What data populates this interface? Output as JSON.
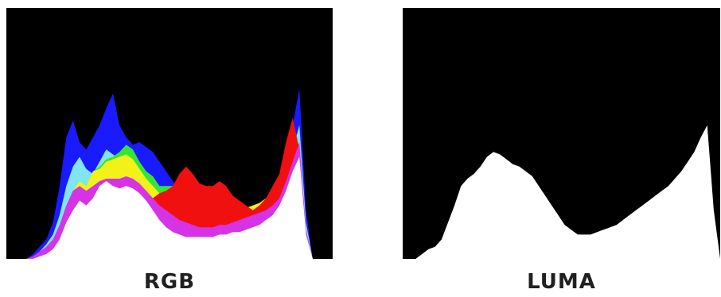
{
  "panels": [
    {
      "caption": "RGB",
      "mode": "rgb",
      "background": "#000000",
      "channel_colors": {
        "blue": "#1a1aff",
        "cyan": "#7fe6f0",
        "green": "#33e633",
        "yellow": "#f2f21a",
        "red": "#f01010",
        "magenta": "#d633e6",
        "white": "#ffffff"
      },
      "histograms": {
        "blue": [
          0,
          0,
          0,
          0,
          0.02,
          0.05,
          0.08,
          0.15,
          0.3,
          0.5,
          0.57,
          0.48,
          0.45,
          0.5,
          0.55,
          0.62,
          0.68,
          0.55,
          0.5,
          0.47,
          0.48,
          0.46,
          0.44,
          0.4,
          0.36,
          0.32,
          0.28,
          0.25,
          0.22,
          0.2,
          0.18,
          0.16,
          0.15,
          0.15,
          0.15,
          0.16,
          0.17,
          0.18,
          0.2,
          0.22,
          0.25,
          0.3,
          0.4,
          0.55,
          0.7,
          0.2,
          0,
          0,
          0,
          0
        ],
        "cyan": [
          0,
          0,
          0,
          0,
          0.01,
          0.03,
          0.06,
          0.1,
          0.18,
          0.3,
          0.38,
          0.42,
          0.37,
          0.35,
          0.4,
          0.45,
          0.43,
          0.41,
          0.42,
          0.4,
          0.38,
          0.36,
          0.32,
          0.28,
          0.24,
          0.2,
          0.17,
          0.14,
          0.12,
          0.1,
          0.09,
          0.08,
          0.08,
          0.08,
          0.09,
          0.1,
          0.11,
          0.12,
          0.14,
          0.16,
          0.2,
          0.26,
          0.35,
          0.45,
          0.55,
          0.15,
          0,
          0,
          0,
          0
        ],
        "green": [
          0,
          0,
          0,
          0,
          0,
          0.01,
          0.03,
          0.05,
          0.1,
          0.2,
          0.28,
          0.32,
          0.3,
          0.36,
          0.38,
          0.41,
          0.42,
          0.44,
          0.47,
          0.45,
          0.4,
          0.36,
          0.34,
          0.3,
          0.3,
          0.3,
          0.34,
          0.32,
          0.27,
          0.25,
          0.2,
          0.17,
          0.15,
          0.14,
          0.13,
          0.14,
          0.15,
          0.17,
          0.19,
          0.21,
          0.24,
          0.28,
          0.35,
          0.38,
          0.4,
          0.1,
          0,
          0,
          0,
          0
        ],
        "yellow": [
          0,
          0,
          0,
          0,
          0,
          0.01,
          0.03,
          0.05,
          0.1,
          0.2,
          0.28,
          0.32,
          0.3,
          0.36,
          0.37,
          0.4,
          0.41,
          0.42,
          0.43,
          0.41,
          0.37,
          0.33,
          0.3,
          0.27,
          0.25,
          0.24,
          0.23,
          0.22,
          0.21,
          0.2,
          0.2,
          0.19,
          0.19,
          0.19,
          0.19,
          0.2,
          0.21,
          0.22,
          0.23,
          0.25,
          0.28,
          0.32,
          0.36,
          0.4,
          0.42,
          0.1,
          0,
          0,
          0,
          0
        ],
        "red": [
          0,
          0,
          0,
          0,
          0,
          0.01,
          0.02,
          0.04,
          0.08,
          0.15,
          0.22,
          0.25,
          0.24,
          0.27,
          0.28,
          0.3,
          0.3,
          0.3,
          0.31,
          0.3,
          0.28,
          0.26,
          0.25,
          0.27,
          0.28,
          0.3,
          0.35,
          0.38,
          0.35,
          0.31,
          0.3,
          0.3,
          0.32,
          0.3,
          0.26,
          0.24,
          0.22,
          0.2,
          0.22,
          0.25,
          0.3,
          0.35,
          0.48,
          0.58,
          0.45,
          0.1,
          0,
          0,
          0,
          0
        ],
        "magenta": [
          0,
          0,
          0,
          0,
          0.01,
          0.03,
          0.05,
          0.08,
          0.14,
          0.22,
          0.28,
          0.3,
          0.28,
          0.3,
          0.32,
          0.33,
          0.33,
          0.33,
          0.34,
          0.33,
          0.31,
          0.28,
          0.25,
          0.22,
          0.2,
          0.18,
          0.16,
          0.15,
          0.14,
          0.13,
          0.13,
          0.13,
          0.14,
          0.14,
          0.15,
          0.16,
          0.17,
          0.18,
          0.19,
          0.2,
          0.22,
          0.25,
          0.32,
          0.4,
          0.48,
          0.12,
          0,
          0,
          0,
          0
        ],
        "white": [
          0,
          0,
          0,
          0,
          0,
          0.01,
          0.02,
          0.04,
          0.08,
          0.15,
          0.2,
          0.24,
          0.22,
          0.25,
          0.3,
          0.32,
          0.3,
          0.29,
          0.3,
          0.29,
          0.27,
          0.24,
          0.2,
          0.16,
          0.13,
          0.11,
          0.1,
          0.09,
          0.09,
          0.09,
          0.09,
          0.09,
          0.1,
          0.1,
          0.11,
          0.11,
          0.12,
          0.13,
          0.14,
          0.16,
          0.18,
          0.22,
          0.28,
          0.36,
          0.42,
          0.1,
          0,
          0,
          0,
          0
        ]
      }
    },
    {
      "caption": "LUMA",
      "mode": "luma",
      "background": "#000000",
      "fill_color": "#ffffff",
      "histogram": [
        0,
        0,
        0,
        0.02,
        0.04,
        0.05,
        0.08,
        0.15,
        0.22,
        0.3,
        0.33,
        0.35,
        0.38,
        0.42,
        0.44,
        0.43,
        0.41,
        0.39,
        0.38,
        0.36,
        0.34,
        0.3,
        0.26,
        0.22,
        0.18,
        0.14,
        0.12,
        0.1,
        0.1,
        0.1,
        0.11,
        0.12,
        0.13,
        0.14,
        0.16,
        0.18,
        0.2,
        0.22,
        0.24,
        0.26,
        0.28,
        0.3,
        0.33,
        0.36,
        0.4,
        0.44,
        0.5,
        0.55,
        0.2,
        0
      ]
    }
  ]
}
